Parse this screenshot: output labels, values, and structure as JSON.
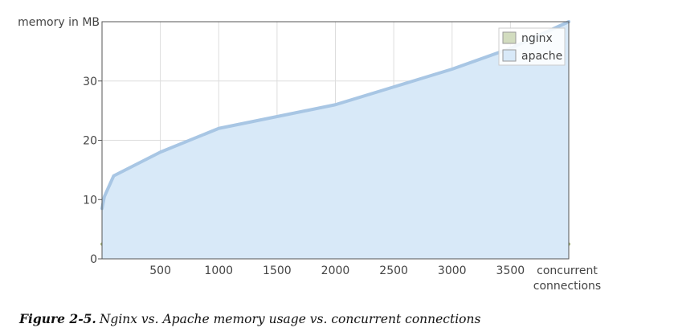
{
  "chart_data": {
    "type": "area",
    "ylabel": "memory in MB",
    "xlabel": "concurrent connections",
    "xlabel_lines": [
      "concurrent",
      "connections"
    ],
    "xlim": [
      0,
      4000
    ],
    "ylim": [
      0,
      40
    ],
    "x_ticks": [
      500,
      1000,
      1500,
      2000,
      2500,
      3000,
      3500
    ],
    "x_tick_labels": [
      "500",
      "1000",
      "1500",
      "2000",
      "2500",
      "3000",
      "3500"
    ],
    "y_ticks": [
      0,
      10,
      20,
      30
    ],
    "y_tick_labels": [
      "0",
      "10",
      "20",
      "30"
    ],
    "grid": true,
    "legend_position": "top-right",
    "series": [
      {
        "name": "nginx",
        "color": "#d2dcbf",
        "line_color": "#a6b67a",
        "x": [
          0,
          4000
        ],
        "y": [
          2.5,
          2.5
        ]
      },
      {
        "name": "apache",
        "color": "#d8e9f8",
        "line_color": "#a8c6e4",
        "x": [
          0,
          20,
          100,
          500,
          1000,
          1500,
          2000,
          2500,
          3000,
          3500,
          4000
        ],
        "y": [
          8.5,
          10.5,
          14,
          18,
          22,
          24,
          26,
          29,
          32,
          35.5,
          40
        ]
      }
    ]
  },
  "caption": {
    "label": "Figure 2-5.",
    "text": "Nginx vs. Apache memory usage vs. concurrent connections"
  }
}
